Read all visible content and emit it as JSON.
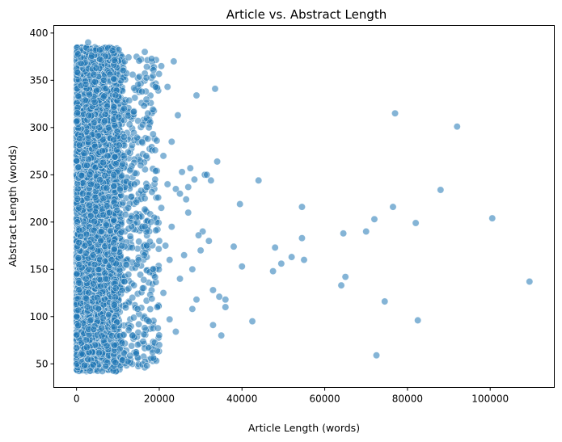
{
  "chart_data": {
    "type": "scatter",
    "title": "Article vs. Abstract Length",
    "xlabel": "Article Length (words)",
    "ylabel": "Abstract Length (words)",
    "xlim": [
      -5500,
      115500
    ],
    "ylim": [
      25,
      408
    ],
    "xticks": [
      0,
      20000,
      40000,
      60000,
      80000,
      100000
    ],
    "xtick_labels": [
      "0",
      "20000",
      "40000",
      "60000",
      "80000",
      "100000"
    ],
    "yticks": [
      50,
      100,
      150,
      200,
      250,
      300,
      350,
      400
    ],
    "ytick_labels": [
      "50",
      "100",
      "150",
      "200",
      "250",
      "300",
      "350",
      "400"
    ],
    "grid": false,
    "point_color": "#1f77b4",
    "point_edge_color": "#ffffff",
    "point_alpha": 0.55,
    "dense_region": {
      "x_range": [
        0,
        10000
      ],
      "y_range": [
        42,
        385
      ]
    },
    "series": [
      {
        "x": [
          200,
          600,
          1000,
          1500,
          2000,
          2500,
          3000,
          3500,
          4000,
          4500,
          5000,
          5500,
          6000,
          6500,
          7000,
          7500,
          8000,
          8500,
          9000,
          9500,
          10000,
          10500,
          11000,
          11500,
          12000,
          12500,
          13000,
          13500,
          14000,
          14500,
          15000,
          15500,
          16000,
          16500,
          17000,
          17500,
          18000,
          18500,
          19000,
          19500,
          20000,
          20500,
          21000,
          21500,
          22000,
          22500,
          23000,
          24000,
          25000,
          26000,
          27000,
          28000,
          29000,
          30000,
          31000,
          32000,
          33000,
          34000,
          35000,
          36000,
          38000,
          39500,
          40000,
          42500,
          44000,
          47500,
          48000,
          49500,
          52000,
          54500,
          54500,
          55000,
          64000,
          64500,
          65000,
          70000,
          72000,
          72500,
          74500,
          76500,
          77000,
          82000,
          82500,
          88000,
          92000,
          100500,
          109500,
          2800,
          16500,
          23500,
          20500,
          22000,
          33500,
          29000,
          24500,
          16000,
          17500,
          25500,
          27500,
          28500,
          31500,
          32500,
          26500,
          30500,
          19000,
          21000,
          18500,
          25000,
          23000,
          27000,
          36000,
          34500,
          29500,
          19500,
          20000,
          24000,
          33000,
          17000,
          22500,
          28000
        ],
        "y": [
          200,
          215,
          185,
          230,
          175,
          260,
          150,
          240,
          165,
          280,
          120,
          300,
          190,
          225,
          140,
          270,
          210,
          160,
          250,
          130,
          195,
          235,
          175,
          290,
          155,
          215,
          185,
          120,
          240,
          205,
          160,
          260,
          130,
          225,
          175,
          95,
          200,
          150,
          245,
          110,
          180,
          215,
          125,
          175,
          240,
          160,
          195,
          235,
          140,
          165,
          210,
          150,
          118,
          170,
          250,
          180,
          128,
          264,
          80,
          110,
          174,
          219,
          153,
          95,
          244,
          148,
          173,
          156,
          163,
          216,
          183,
          160,
          133,
          188,
          142,
          190,
          203,
          59,
          116,
          216,
          315,
          199,
          96,
          234,
          301,
          204,
          137,
          390,
          380,
          370,
          365,
          343,
          341,
          334,
          313,
          303,
          300,
          253,
          257,
          245,
          250,
          244,
          224,
          190,
          276,
          270,
          293,
          230,
          285,
          237,
          118,
          121,
          186,
          64,
          70,
          84,
          91,
          48,
          97,
          108
        ]
      }
    ]
  }
}
